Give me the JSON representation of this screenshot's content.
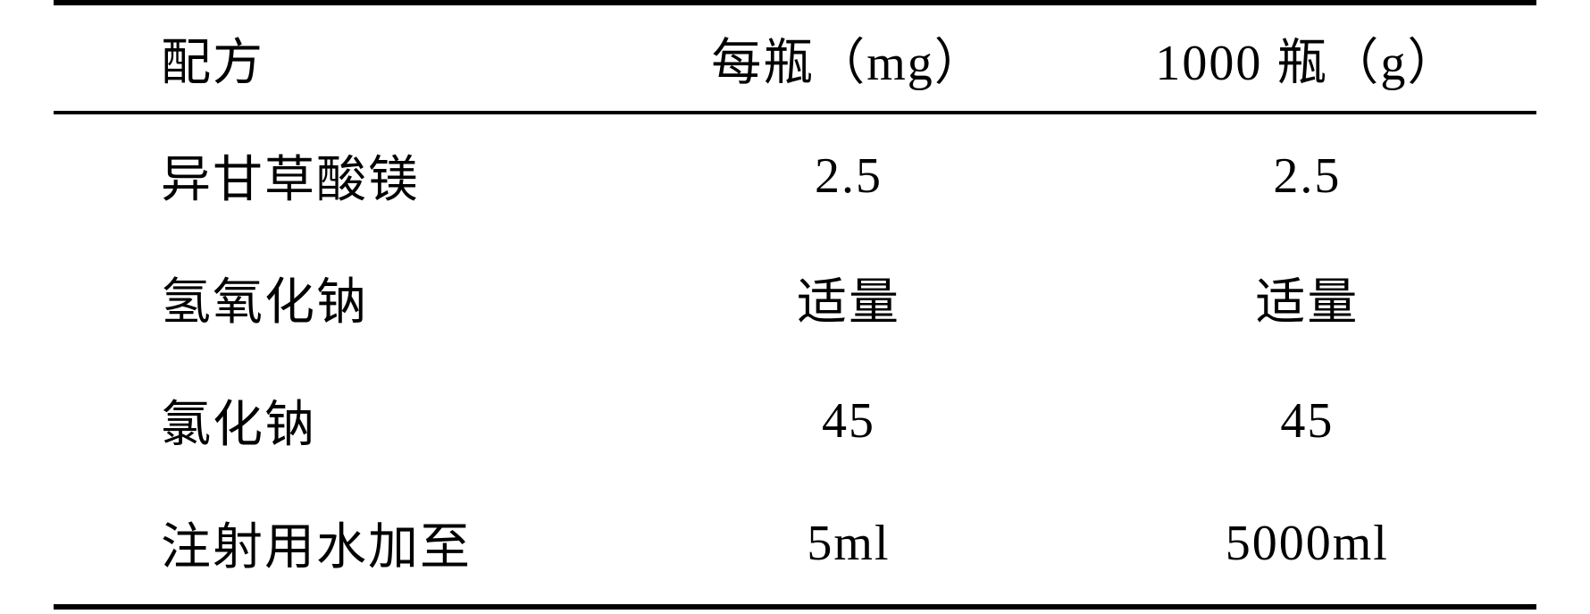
{
  "table": {
    "columns": [
      "配方",
      "每瓶（mg）",
      "1000 瓶（g）"
    ],
    "rows": [
      [
        "异甘草酸镁",
        "2.5",
        "2.5"
      ],
      [
        "氢氧化钠",
        "适量",
        "适量"
      ],
      [
        "氯化钠",
        "45",
        "45"
      ],
      [
        "注射用水加至",
        "5ml",
        "5000ml"
      ]
    ],
    "border_color": "#000000",
    "top_border_width": 6,
    "header_border_width": 4,
    "bottom_border_width": 6,
    "font_size": 56,
    "text_color": "#000000",
    "background_color": "#ffffff"
  }
}
